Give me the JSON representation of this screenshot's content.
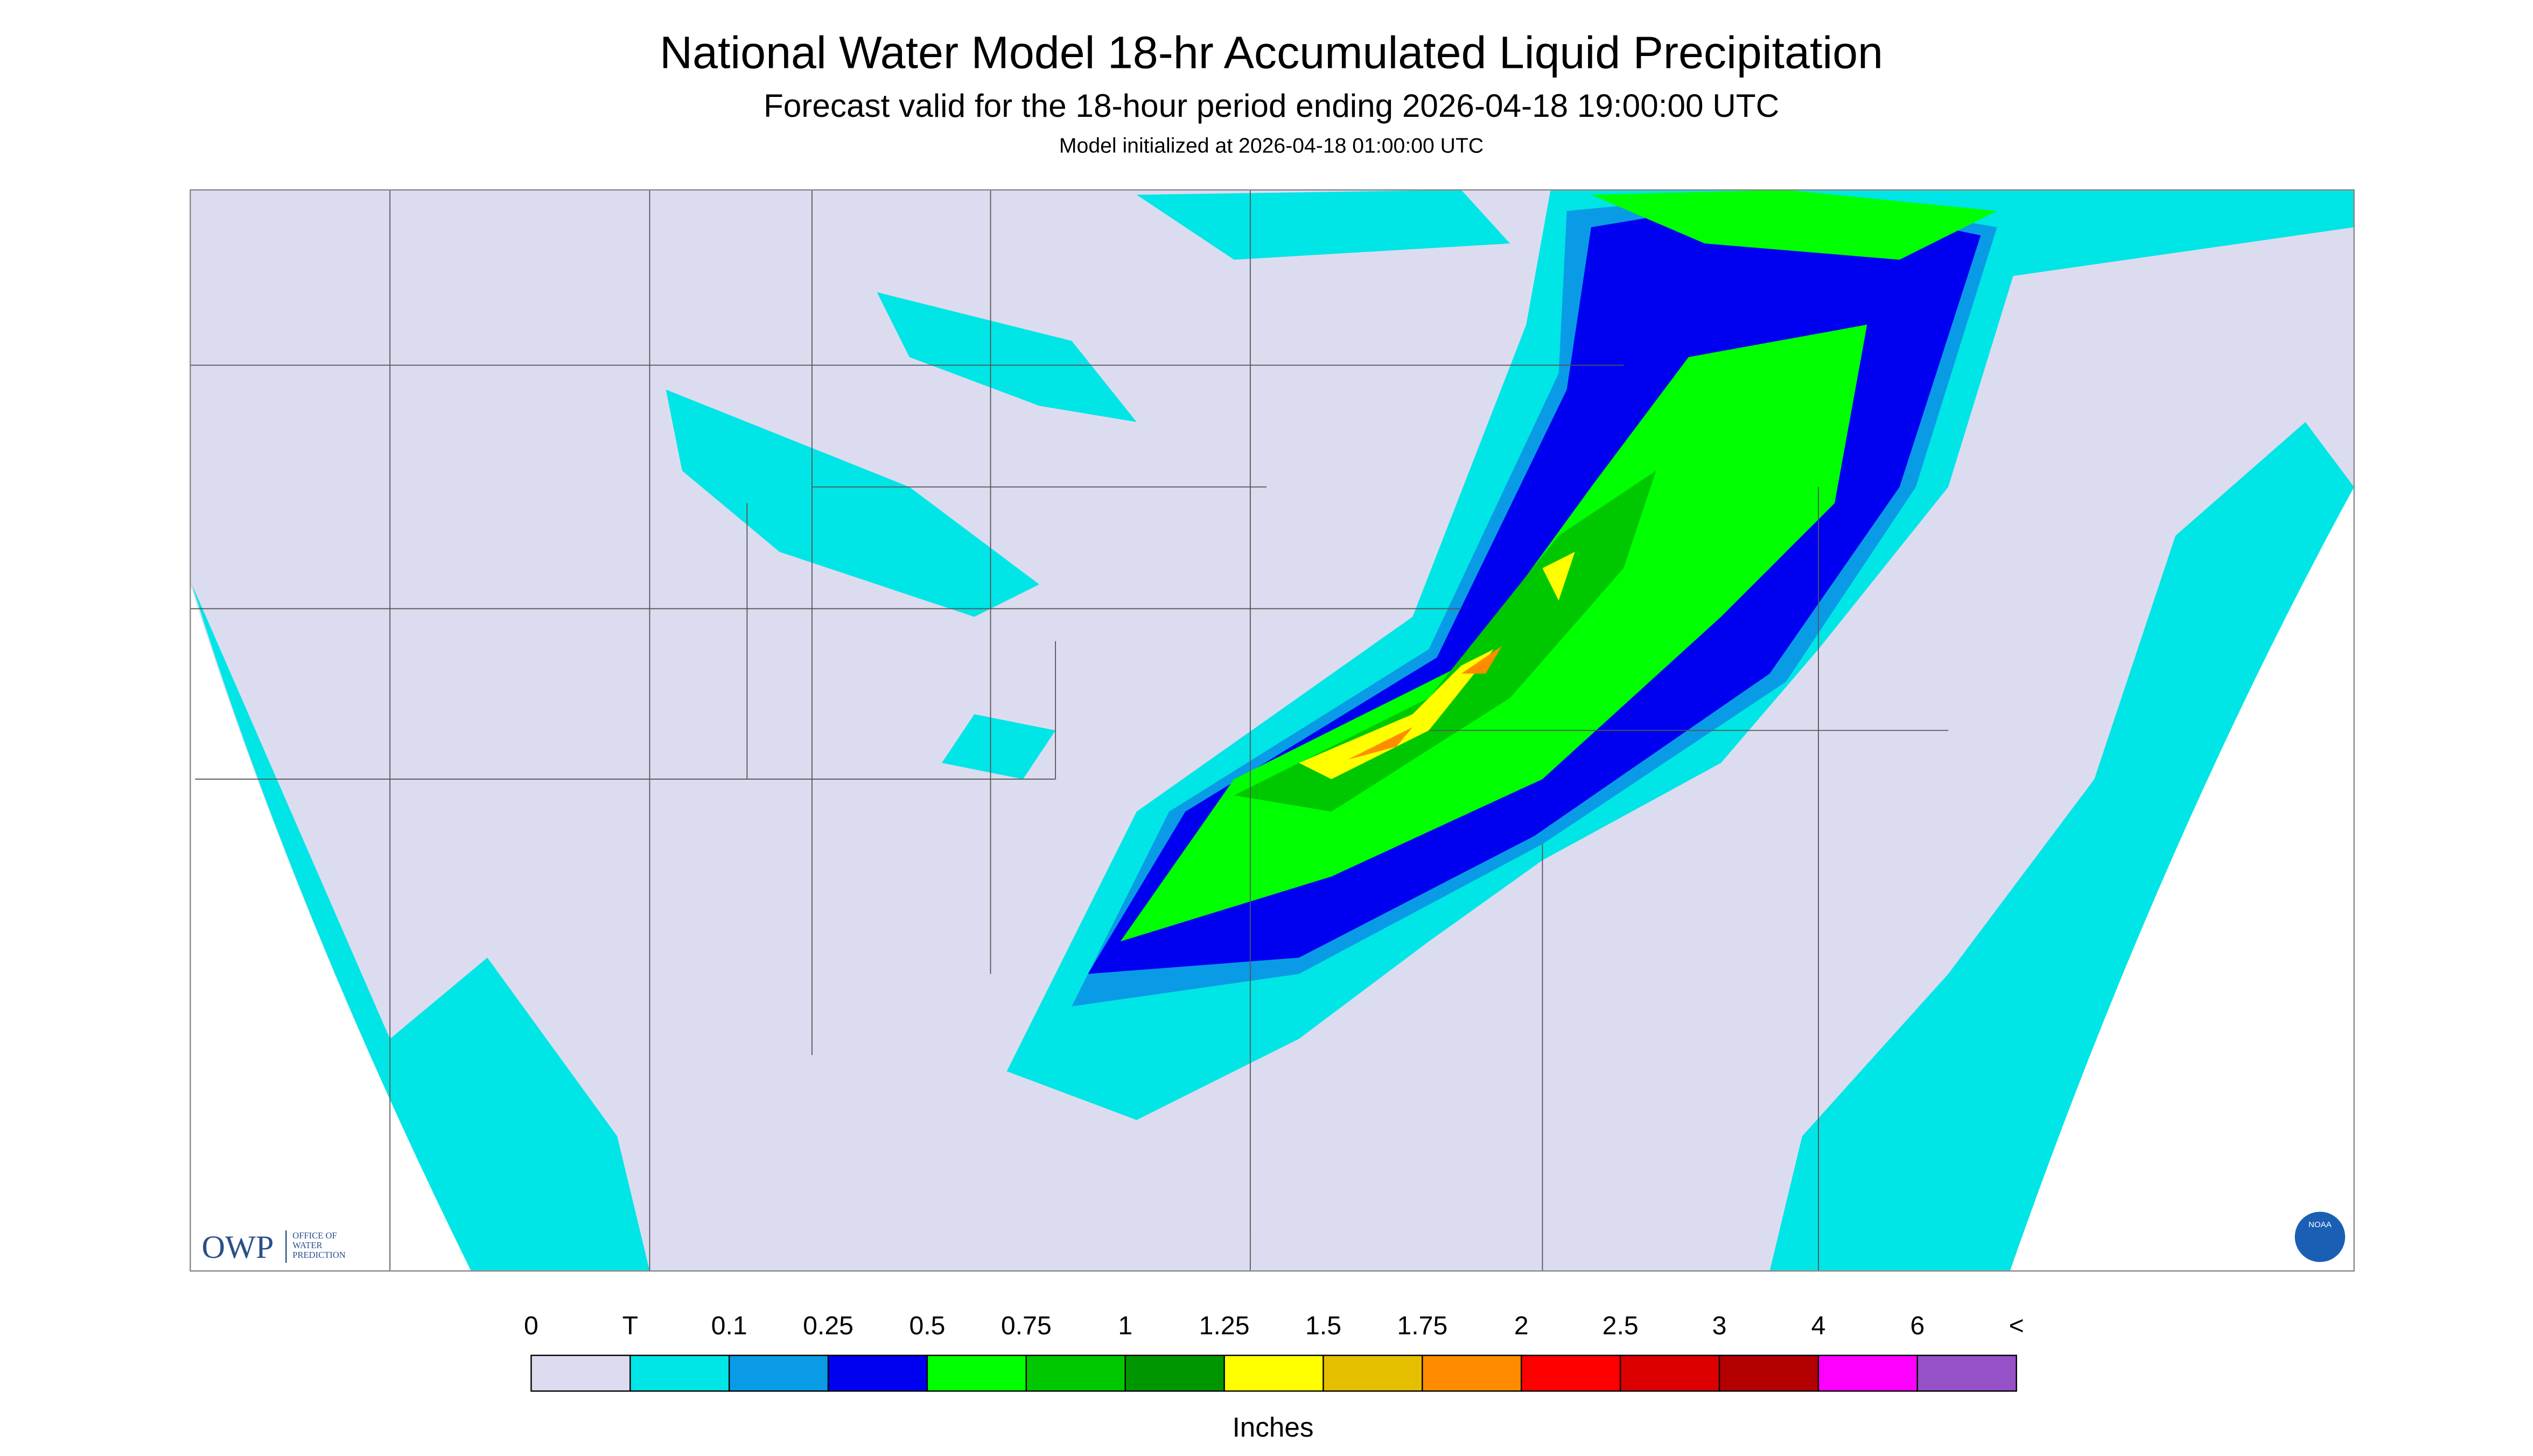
{
  "header": {
    "title": "National Water Model 18-hr Accumulated Liquid Precipitation",
    "subtitle": "Forecast valid for the 18-hour period ending 2026-04-18 19:00:00 UTC",
    "init": "Model initialized at 2026-04-18 01:00:00 UTC"
  },
  "logos": {
    "owp": "OWP",
    "owp_full": [
      "OFFICE OF",
      "WATER",
      "PREDICTION"
    ],
    "noaa": "NOAA"
  },
  "legend": {
    "labels": [
      "0",
      "T",
      "0.1",
      "0.25",
      "0.5",
      "0.75",
      "1",
      "1.25",
      "1.5",
      "1.75",
      "2",
      "2.5",
      "3",
      "4",
      "6",
      "<"
    ],
    "colors": [
      "#dcdcf0",
      "#00e5e5",
      "#0a9be6",
      "#0000f0",
      "#00ff00",
      "#00c800",
      "#009600",
      "#ffff00",
      "#e6be00",
      "#ff8c00",
      "#ff0000",
      "#dc0000",
      "#b40000",
      "#ff00ff",
      "#9650c8"
    ],
    "unit": "Inches"
  }
}
